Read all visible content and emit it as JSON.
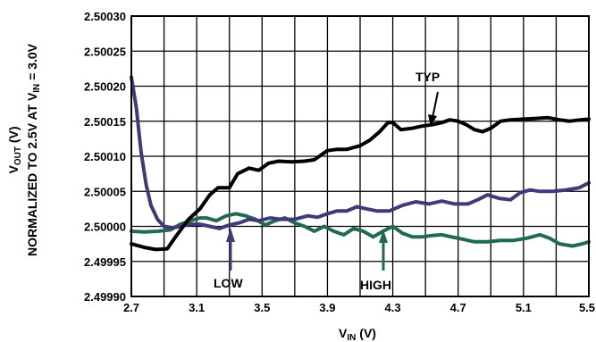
{
  "chart_data": {
    "type": "line",
    "title": "",
    "xlabel": {
      "main": "V",
      "sub": "IN",
      "tail": " (V)"
    },
    "ylabel": {
      "line1": {
        "main": "V",
        "sub": "OUT",
        "tail": " (V)"
      },
      "line2": {
        "main": "NORMALIZED TO 2.5V AT V",
        "sub": "IN",
        "tail": " = 3.0V"
      }
    },
    "xlim": [
      2.7,
      5.5
    ],
    "ylim": [
      2.4999,
      2.5003
    ],
    "x_ticks": [
      "2.7",
      "3.1",
      "3.5",
      "3.9",
      "4.3",
      "4.7",
      "5.1",
      "5.5"
    ],
    "y_ticks": [
      "2.49990",
      "2.49995",
      "2.50000",
      "2.50005",
      "2.50010",
      "2.50015",
      "2.50020",
      "2.50025",
      "2.50030"
    ],
    "grid": true,
    "series": [
      {
        "name": "TYP",
        "color": "#000000",
        "points": [
          [
            2.7,
            2.499975
          ],
          [
            2.78,
            2.49997
          ],
          [
            2.85,
            2.499967
          ],
          [
            2.92,
            2.499968
          ],
          [
            2.97,
            2.499985
          ],
          [
            3.05,
            2.50001
          ],
          [
            3.12,
            2.500025
          ],
          [
            3.18,
            2.500045
          ],
          [
            3.23,
            2.500055
          ],
          [
            3.3,
            2.500055
          ],
          [
            3.35,
            2.500075
          ],
          [
            3.42,
            2.500083
          ],
          [
            3.48,
            2.50008
          ],
          [
            3.54,
            2.50009
          ],
          [
            3.6,
            2.500093
          ],
          [
            3.68,
            2.500092
          ],
          [
            3.76,
            2.500093
          ],
          [
            3.82,
            2.500095
          ],
          [
            3.9,
            2.500108
          ],
          [
            3.96,
            2.50011
          ],
          [
            4.02,
            2.50011
          ],
          [
            4.1,
            2.500115
          ],
          [
            4.16,
            2.500123
          ],
          [
            4.22,
            2.500135
          ],
          [
            4.27,
            2.500148
          ],
          [
            4.3,
            2.500148
          ],
          [
            4.35,
            2.500138
          ],
          [
            4.42,
            2.50014
          ],
          [
            4.48,
            2.500143
          ],
          [
            4.54,
            2.500145
          ],
          [
            4.6,
            2.500148
          ],
          [
            4.65,
            2.500152
          ],
          [
            4.7,
            2.50015
          ],
          [
            4.75,
            2.500145
          ],
          [
            4.8,
            2.500138
          ],
          [
            4.85,
            2.500135
          ],
          [
            4.9,
            2.50014
          ],
          [
            4.96,
            2.50015
          ],
          [
            5.02,
            2.500152
          ],
          [
            5.1,
            2.500153
          ],
          [
            5.18,
            2.500154
          ],
          [
            5.25,
            2.500155
          ],
          [
            5.32,
            2.500152
          ],
          [
            5.38,
            2.50015
          ],
          [
            5.45,
            2.500152
          ],
          [
            5.5,
            2.500153
          ]
        ]
      },
      {
        "name": "LOW",
        "color": "#3f3a7a",
        "points": [
          [
            2.7,
            2.500213
          ],
          [
            2.73,
            2.50017
          ],
          [
            2.76,
            2.500105
          ],
          [
            2.79,
            2.50006
          ],
          [
            2.82,
            2.50003
          ],
          [
            2.86,
            2.50001
          ],
          [
            2.9,
            2.5
          ],
          [
            2.95,
            2.499998
          ],
          [
            3.0,
            2.5
          ],
          [
            3.06,
            2.500003
          ],
          [
            3.12,
            2.500003
          ],
          [
            3.18,
            2.5
          ],
          [
            3.24,
            2.499997
          ],
          [
            3.3,
            2.500002
          ],
          [
            3.36,
            2.500005
          ],
          [
            3.42,
            2.50001
          ],
          [
            3.48,
            2.500008
          ],
          [
            3.55,
            2.500012
          ],
          [
            3.62,
            2.50001
          ],
          [
            3.7,
            2.50001
          ],
          [
            3.78,
            2.500015
          ],
          [
            3.84,
            2.500013
          ],
          [
            3.9,
            2.500018
          ],
          [
            3.96,
            2.500022
          ],
          [
            4.02,
            2.500022
          ],
          [
            4.08,
            2.500028
          ],
          [
            4.14,
            2.500025
          ],
          [
            4.2,
            2.500022
          ],
          [
            4.28,
            2.500022
          ],
          [
            4.36,
            2.50003
          ],
          [
            4.44,
            2.500035
          ],
          [
            4.52,
            2.500032
          ],
          [
            4.6,
            2.500036
          ],
          [
            4.68,
            2.500032
          ],
          [
            4.76,
            2.500032
          ],
          [
            4.82,
            2.500038
          ],
          [
            4.88,
            2.500045
          ],
          [
            4.95,
            2.50004
          ],
          [
            5.02,
            2.500038
          ],
          [
            5.08,
            2.500048
          ],
          [
            5.14,
            2.500052
          ],
          [
            5.2,
            2.50005
          ],
          [
            5.28,
            2.50005
          ],
          [
            5.36,
            2.500052
          ],
          [
            5.44,
            2.500055
          ],
          [
            5.5,
            2.500062
          ]
        ]
      },
      {
        "name": "HIGH",
        "color": "#1f6b4e",
        "points": [
          [
            2.7,
            2.499993
          ],
          [
            2.78,
            2.499992
          ],
          [
            2.86,
            2.499993
          ],
          [
            2.94,
            2.499995
          ],
          [
            3.0,
            2.500003
          ],
          [
            3.06,
            2.500008
          ],
          [
            3.12,
            2.500012
          ],
          [
            3.16,
            2.500012
          ],
          [
            3.22,
            2.500008
          ],
          [
            3.28,
            2.500015
          ],
          [
            3.34,
            2.500018
          ],
          [
            3.4,
            2.500015
          ],
          [
            3.46,
            2.50001
          ],
          [
            3.52,
            2.500002
          ],
          [
            3.58,
            2.500008
          ],
          [
            3.64,
            2.500012
          ],
          [
            3.7,
            2.500005
          ],
          [
            3.76,
            2.5
          ],
          [
            3.82,
            2.499993
          ],
          [
            3.88,
            2.5
          ],
          [
            3.94,
            2.499993
          ],
          [
            4.0,
            2.499988
          ],
          [
            4.06,
            2.499997
          ],
          [
            4.12,
            2.499993
          ],
          [
            4.18,
            2.499985
          ],
          [
            4.24,
            2.499993
          ],
          [
            4.3,
            2.5
          ],
          [
            4.36,
            2.49999
          ],
          [
            4.42,
            2.499985
          ],
          [
            4.48,
            2.499985
          ],
          [
            4.54,
            2.499987
          ],
          [
            4.6,
            2.499988
          ],
          [
            4.66,
            2.499985
          ],
          [
            4.72,
            2.499982
          ],
          [
            4.8,
            2.499978
          ],
          [
            4.88,
            2.499978
          ],
          [
            4.96,
            2.49998
          ],
          [
            5.04,
            2.49998
          ],
          [
            5.12,
            2.499983
          ],
          [
            5.2,
            2.499988
          ],
          [
            5.26,
            2.499983
          ],
          [
            5.32,
            2.499975
          ],
          [
            5.4,
            2.499972
          ],
          [
            5.46,
            2.499975
          ],
          [
            5.5,
            2.499978
          ]
        ]
      }
    ],
    "annotations": [
      {
        "text": "TYP",
        "series": "TYP"
      },
      {
        "text": "LOW",
        "series": "LOW"
      },
      {
        "text": "HIGH",
        "series": "HIGH"
      }
    ]
  }
}
